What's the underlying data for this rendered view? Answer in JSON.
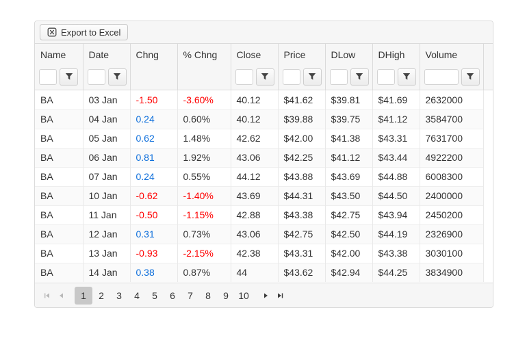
{
  "toolbar": {
    "export_label": "Export to Excel"
  },
  "grid": {
    "columns": [
      {
        "field": "name",
        "label": "Name",
        "filterable": true
      },
      {
        "field": "date",
        "label": "Date",
        "filterable": true
      },
      {
        "field": "chng",
        "label": "Chng",
        "filterable": false
      },
      {
        "field": "pct_chng",
        "label": "% Chng",
        "filterable": false
      },
      {
        "field": "close",
        "label": "Close",
        "filterable": true
      },
      {
        "field": "price",
        "label": "Price",
        "filterable": true
      },
      {
        "field": "dlow",
        "label": "DLow",
        "filterable": true
      },
      {
        "field": "dhigh",
        "label": "DHigh",
        "filterable": true
      },
      {
        "field": "volume",
        "label": "Volume",
        "filterable": true
      }
    ],
    "filter_input_value": "",
    "rows": [
      {
        "name": "BA",
        "date": "03 Jan",
        "chng": "-1.50",
        "pct_chng": "-3.60%",
        "close": "40.12",
        "price": "$41.62",
        "dlow": "$39.81",
        "dhigh": "$41.69",
        "volume": "2632000"
      },
      {
        "name": "BA",
        "date": "04 Jan",
        "chng": "0.24",
        "pct_chng": "0.60%",
        "close": "40.12",
        "price": "$39.88",
        "dlow": "$39.75",
        "dhigh": "$41.12",
        "volume": "3584700"
      },
      {
        "name": "BA",
        "date": "05 Jan",
        "chng": "0.62",
        "pct_chng": "1.48%",
        "close": "42.62",
        "price": "$42.00",
        "dlow": "$41.38",
        "dhigh": "$43.31",
        "volume": "7631700"
      },
      {
        "name": "BA",
        "date": "06 Jan",
        "chng": "0.81",
        "pct_chng": "1.92%",
        "close": "43.06",
        "price": "$42.25",
        "dlow": "$41.12",
        "dhigh": "$43.44",
        "volume": "4922200"
      },
      {
        "name": "BA",
        "date": "07 Jan",
        "chng": "0.24",
        "pct_chng": "0.55%",
        "close": "44.12",
        "price": "$43.88",
        "dlow": "$43.69",
        "dhigh": "$44.88",
        "volume": "6008300"
      },
      {
        "name": "BA",
        "date": "10 Jan",
        "chng": "-0.62",
        "pct_chng": "-1.40%",
        "close": "43.69",
        "price": "$44.31",
        "dlow": "$43.50",
        "dhigh": "$44.50",
        "volume": "2400000"
      },
      {
        "name": "BA",
        "date": "11 Jan",
        "chng": "-0.50",
        "pct_chng": "-1.15%",
        "close": "42.88",
        "price": "$43.38",
        "dlow": "$42.75",
        "dhigh": "$43.94",
        "volume": "2450200"
      },
      {
        "name": "BA",
        "date": "12 Jan",
        "chng": "0.31",
        "pct_chng": "0.73%",
        "close": "43.06",
        "price": "$42.75",
        "dlow": "$42.50",
        "dhigh": "$44.19",
        "volume": "2326900"
      },
      {
        "name": "BA",
        "date": "13 Jan",
        "chng": "-0.93",
        "pct_chng": "-2.15%",
        "close": "42.38",
        "price": "$43.31",
        "dlow": "$42.00",
        "dhigh": "$43.38",
        "volume": "3030100"
      },
      {
        "name": "BA",
        "date": "14 Jan",
        "chng": "0.38",
        "pct_chng": "0.87%",
        "close": "44",
        "price": "$43.62",
        "dlow": "$42.94",
        "dhigh": "$44.25",
        "volume": "3834900"
      }
    ]
  },
  "pager": {
    "pages": [
      "1",
      "2",
      "3",
      "4",
      "5",
      "6",
      "7",
      "8",
      "9",
      "10"
    ],
    "selected_page": "1"
  },
  "colors": {
    "negative": "#ff0000",
    "positive_chng": "#0d6edb",
    "selected_page_bg": "#c8c8c8",
    "nav_enabled": "#3c3c3c",
    "nav_disabled": "#b9b9b9"
  }
}
